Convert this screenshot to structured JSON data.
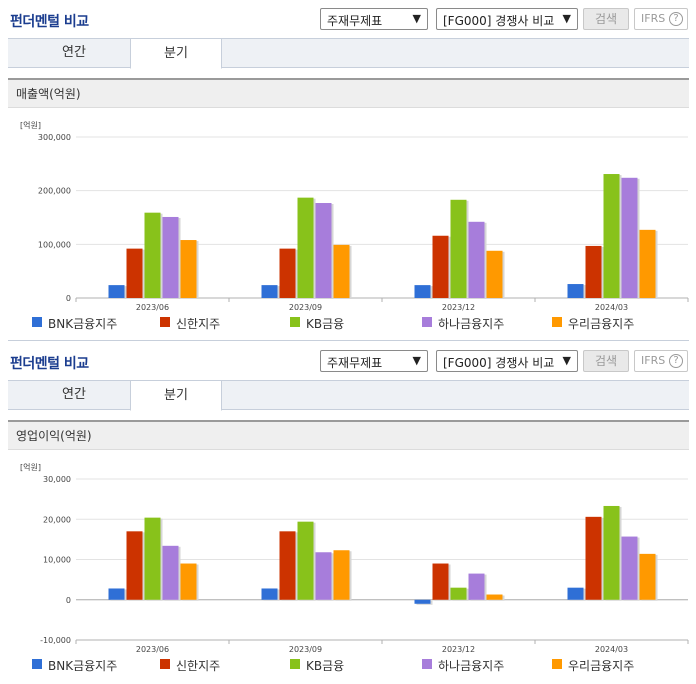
{
  "panels": [
    {
      "title": "펀더멘털 비교",
      "select1": "주재무제표",
      "select2": "[FG000] 경쟁사 비교",
      "search_label": "검색",
      "ifrs_label": "IFRS",
      "help_icon": "?",
      "tabs": [
        {
          "label": "연간"
        },
        {
          "label": "분기"
        }
      ],
      "active_tab": 1
    },
    {
      "title": "펀더멘털 비교",
      "select1": "주재무제표",
      "select2": "[FG000] 경쟁사 비교",
      "search_label": "검색",
      "ifrs_label": "IFRS",
      "help_icon": "?",
      "tabs": [
        {
          "label": "연간"
        },
        {
          "label": "분기"
        }
      ],
      "active_tab": 1
    }
  ],
  "colors": {
    "BNK금융지주": "#2f6fd6",
    "신한지주": "#cc3300",
    "KB금융": "#88c21b",
    "하나금융지주": "#a77ddb",
    "우리금융지주": "#ff9900"
  },
  "chart_data": [
    {
      "type": "bar",
      "title": "매출액(억원)",
      "unit": "[억원]",
      "categories": [
        "2023/06",
        "2023/09",
        "2023/12",
        "2024/03"
      ],
      "ylim": [
        0,
        300000
      ],
      "yticks": [
        "300,000",
        "200,000",
        "100,000",
        "0"
      ],
      "ytick_values": [
        300000,
        200000,
        100000,
        0
      ],
      "legend_position": "bottom",
      "series": [
        {
          "name": "BNK금융지주",
          "values": [
            24000,
            24000,
            24000,
            26000
          ]
        },
        {
          "name": "신한지주",
          "values": [
            92000,
            92000,
            116000,
            97000
          ]
        },
        {
          "name": "KB금융",
          "values": [
            159000,
            187000,
            183000,
            231000
          ]
        },
        {
          "name": "하나금융지주",
          "values": [
            151000,
            177000,
            142000,
            224000
          ]
        },
        {
          "name": "우리금융지주",
          "values": [
            108000,
            99000,
            88000,
            127000
          ]
        }
      ]
    },
    {
      "type": "bar",
      "title": "영업이익(억원)",
      "unit": "[억원]",
      "categories": [
        "2023/06",
        "2023/09",
        "2023/12",
        "2024/03"
      ],
      "ylim": [
        -10000,
        30000
      ],
      "yticks": [
        "30,000",
        "20,000",
        "10,000",
        "0",
        "-10,000"
      ],
      "ytick_values": [
        30000,
        20000,
        10000,
        0,
        -10000
      ],
      "legend_position": "bottom",
      "series": [
        {
          "name": "BNK금융지주",
          "values": [
            2800,
            2800,
            -1000,
            3000
          ]
        },
        {
          "name": "신한지주",
          "values": [
            17000,
            17000,
            9000,
            20600
          ]
        },
        {
          "name": "KB금융",
          "values": [
            20400,
            19400,
            3000,
            23300
          ]
        },
        {
          "name": "하나금융지주",
          "values": [
            13400,
            11800,
            6500,
            15700
          ]
        },
        {
          "name": "우리금융지주",
          "values": [
            9000,
            12300,
            1300,
            11400
          ]
        }
      ]
    }
  ]
}
